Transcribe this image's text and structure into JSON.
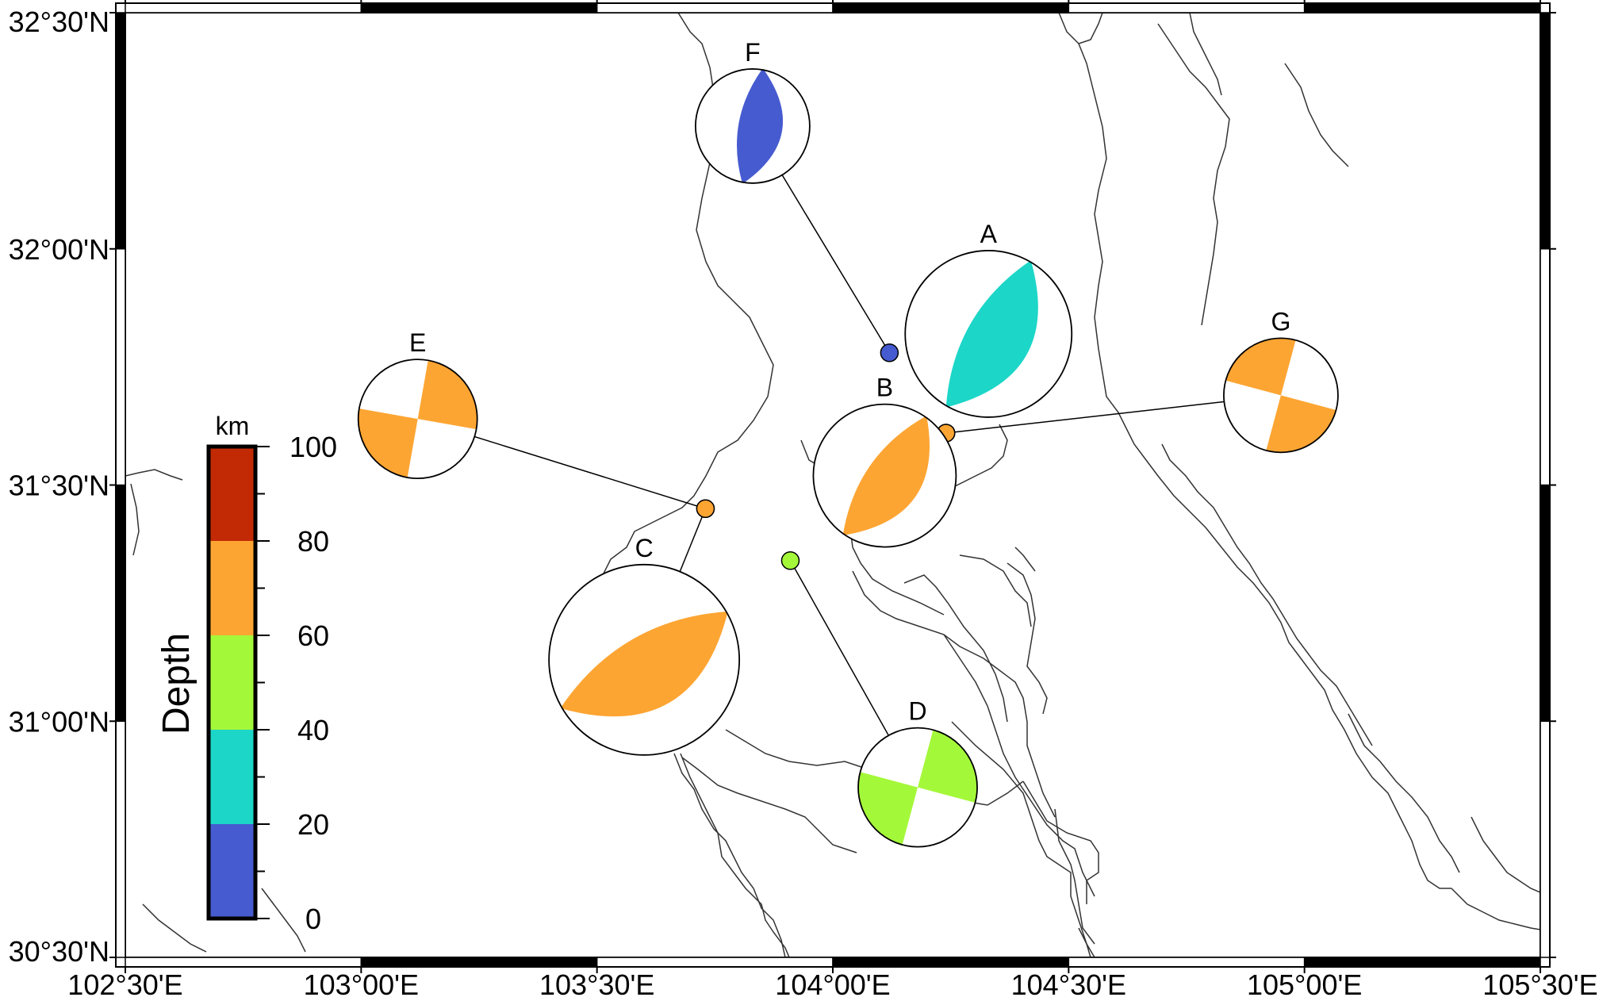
{
  "map": {
    "lon_range": [
      102.5,
      105.5
    ],
    "lat_range": [
      30.5,
      32.5
    ],
    "x_ticks": [
      {
        "value": 102.5,
        "label": "102°30'E"
      },
      {
        "value": 103.0,
        "label": "103°00'E"
      },
      {
        "value": 103.5,
        "label": "103°30'E"
      },
      {
        "value": 104.0,
        "label": "104°00'E"
      },
      {
        "value": 104.5,
        "label": "104°30'E"
      },
      {
        "value": 105.0,
        "label": "105°00'E"
      },
      {
        "value": 105.5,
        "label": "105°30'E"
      }
    ],
    "y_ticks": [
      {
        "value": 30.5,
        "label": "30°30'N"
      },
      {
        "value": 31.0,
        "label": "31°00'N"
      },
      {
        "value": 31.5,
        "label": "31°30'N"
      },
      {
        "value": 32.0,
        "label": "32°00'N"
      },
      {
        "value": 32.5,
        "label": "32°30'N"
      }
    ]
  },
  "colorbar": {
    "title": "Depth",
    "unit": "km",
    "ticks": [
      "0",
      "20",
      "40",
      "60",
      "80",
      "100"
    ],
    "bands": [
      {
        "from": 0,
        "to": 20,
        "color": "#465bd0"
      },
      {
        "from": 20,
        "to": 40,
        "color": "#1cd6c8"
      },
      {
        "from": 40,
        "to": 60,
        "color": "#a4f83a"
      },
      {
        "from": 60,
        "to": 80,
        "color": "#fda533"
      },
      {
        "from": 80,
        "to": 100,
        "color": "#c22a06"
      }
    ]
  },
  "events": [
    {
      "label": "A",
      "lon": 104.33,
      "lat": 31.82,
      "depth": 30,
      "plot_lon": 104.33,
      "plot_lat": 31.82,
      "size": 1.05,
      "strike": 210,
      "pattern": "thrust"
    },
    {
      "label": "B",
      "lon": 104.24,
      "lat": 31.61,
      "depth": 75,
      "plot_lon": 104.11,
      "plot_lat": 31.52,
      "size": 0.9,
      "strike": 215,
      "pattern": "thrust"
    },
    {
      "label": "C",
      "lon": 103.73,
      "lat": 31.45,
      "depth": 75,
      "plot_lon": 103.6,
      "plot_lat": 31.13,
      "size": 1.2,
      "strike": 240,
      "pattern": "thrust"
    },
    {
      "label": "D",
      "lon": 103.91,
      "lat": 31.34,
      "depth": 45,
      "plot_lon": 104.18,
      "plot_lat": 30.86,
      "size": 0.75,
      "strike": 15,
      "pattern": "strike-slip"
    },
    {
      "label": "E",
      "lon": 103.73,
      "lat": 31.45,
      "depth": 75,
      "plot_lon": 103.12,
      "plot_lat": 31.64,
      "size": 0.75,
      "strike": 10,
      "pattern": "strike-slip"
    },
    {
      "label": "F",
      "lon": 104.12,
      "lat": 31.78,
      "depth": 10,
      "plot_lon": 103.83,
      "plot_lat": 32.26,
      "size": 0.72,
      "strike": 190,
      "pattern": "thrust"
    },
    {
      "label": "G",
      "lon": 104.24,
      "lat": 31.61,
      "depth": 75,
      "plot_lon": 104.95,
      "plot_lat": 31.69,
      "size": 0.72,
      "strike": 105,
      "pattern": "strike-slip"
    }
  ]
}
